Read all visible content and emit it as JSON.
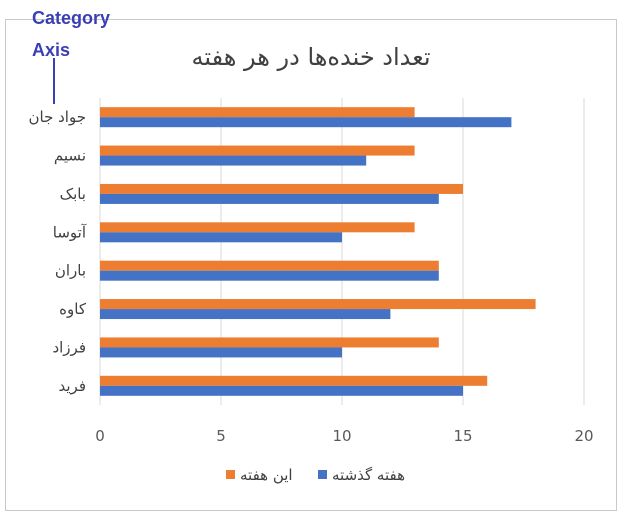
{
  "annotation": {
    "line1": "Category",
    "line2": "Axis"
  },
  "chart_data": {
    "type": "bar",
    "orientation": "horizontal",
    "title": "تعداد خنده‌ها در هر هفته",
    "categories": [
      "جواد جان",
      "نسیم",
      "بابک",
      "آتوسا",
      "باران",
      "کاوه",
      "فرزاد",
      "فرید"
    ],
    "series": [
      {
        "name": "این هفته",
        "color": "#ed7d31",
        "values": [
          13,
          13,
          15,
          13,
          14,
          18,
          14,
          16
        ]
      },
      {
        "name": "هفته گذشته",
        "color": "#4472c4",
        "values": [
          17,
          11,
          14,
          10,
          14,
          12,
          10,
          15
        ]
      }
    ],
    "xlim": [
      0,
      20
    ],
    "xticks": [
      "0",
      "5",
      "10",
      "15",
      "20"
    ],
    "grid": true,
    "legend": "bottom"
  }
}
